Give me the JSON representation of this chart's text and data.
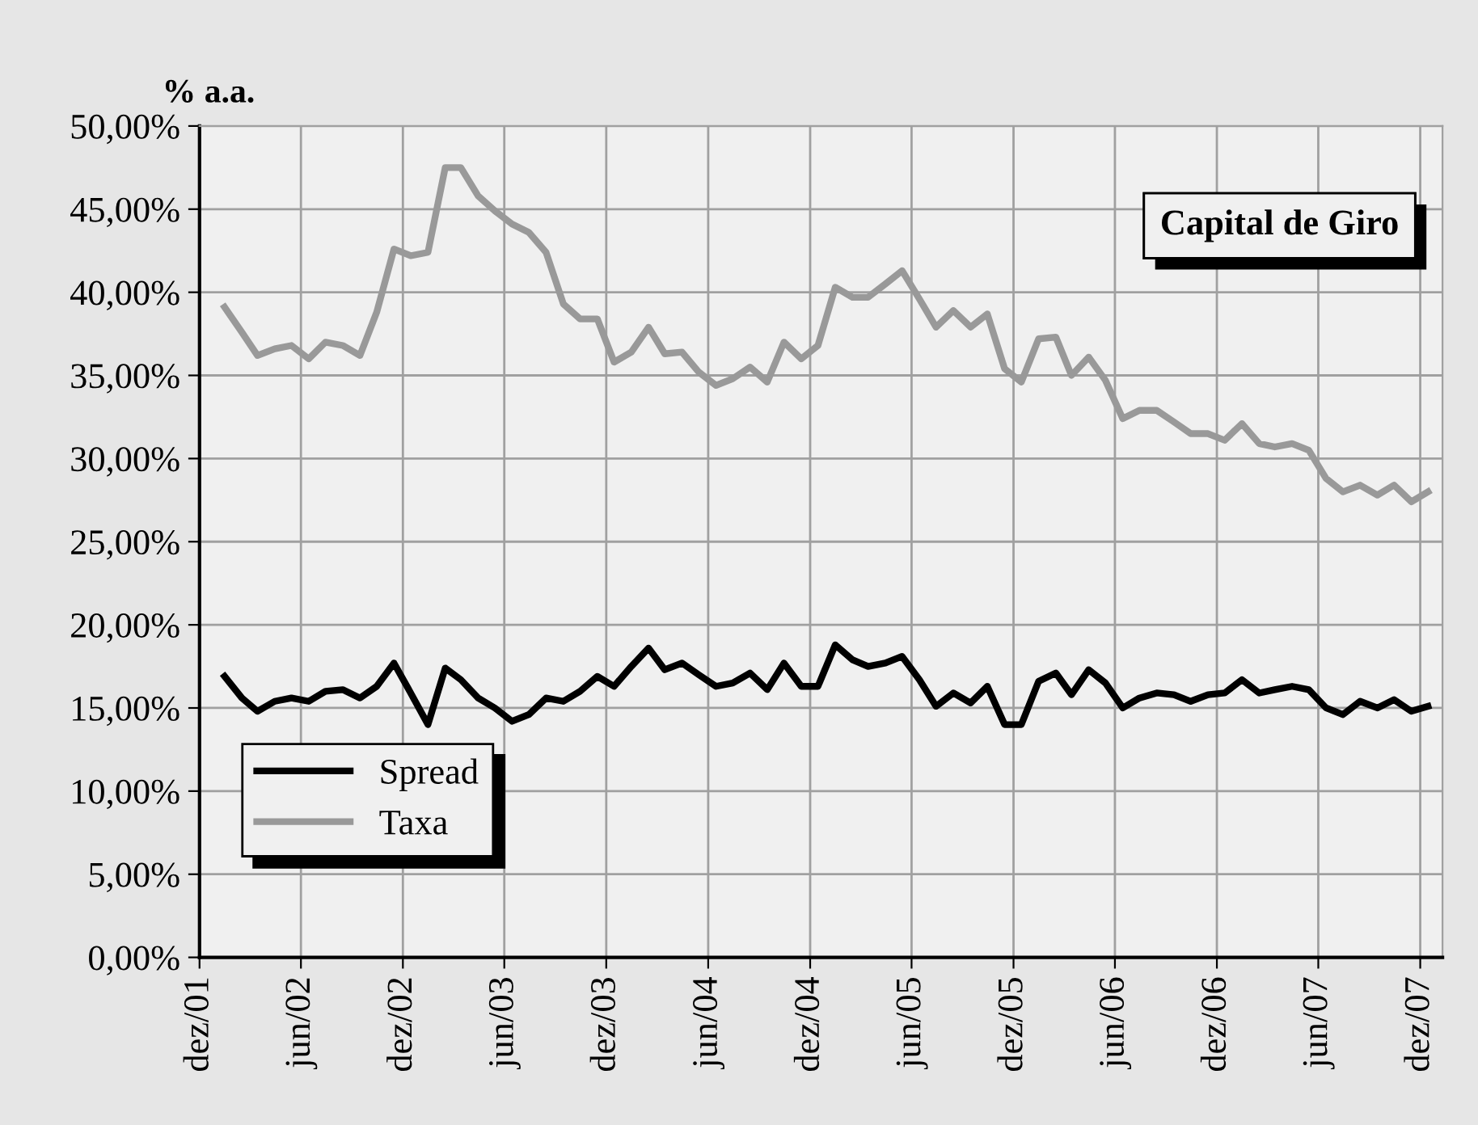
{
  "chart_data": {
    "type": "line",
    "title": "Capital de Giro",
    "ylabel": "% a.a.",
    "x": [
      "2002-01-15",
      "2002-02-15",
      "2002-03-15",
      "2002-04-15",
      "2002-05-15",
      "2002-06-15",
      "2002-07-15",
      "2002-08-15",
      "2002-09-15",
      "2002-10-15",
      "2002-11-15",
      "2002-12-15",
      "2003-01-15",
      "2003-02-15",
      "2003-03-15",
      "2003-04-15",
      "2003-05-15",
      "2003-06-15",
      "2003-07-15",
      "2003-08-15",
      "2003-09-15",
      "2003-10-15",
      "2003-11-15",
      "2003-12-15",
      "2004-01-15",
      "2004-02-15",
      "2004-03-15",
      "2004-04-15",
      "2004-05-15",
      "2004-06-15",
      "2004-07-15",
      "2004-08-15",
      "2004-09-15",
      "2004-10-15",
      "2004-11-15",
      "2004-12-15",
      "2005-01-15",
      "2005-02-15",
      "2005-03-15",
      "2005-04-15",
      "2005-05-15",
      "2005-06-15",
      "2005-07-15",
      "2005-08-15",
      "2005-09-15",
      "2005-10-15",
      "2005-11-15",
      "2005-12-15",
      "2006-01-15",
      "2006-02-15",
      "2006-03-15",
      "2006-04-15",
      "2006-05-15",
      "2006-06-15",
      "2006-07-15",
      "2006-08-15",
      "2006-09-15",
      "2006-10-15",
      "2006-11-15",
      "2006-12-15",
      "2007-01-15",
      "2007-02-15",
      "2007-03-15",
      "2007-04-15",
      "2007-05-15",
      "2007-06-15",
      "2007-07-15",
      "2007-08-15",
      "2007-09-15",
      "2007-10-15",
      "2007-11-15",
      "2007-12-15"
    ],
    "series": [
      {
        "name": "Spread",
        "color": "#000000",
        "values": [
          16.9,
          15.6,
          14.8,
          15.4,
          15.6,
          15.4,
          16.0,
          16.1,
          15.6,
          16.3,
          17.7,
          15.9,
          14.0,
          17.4,
          16.7,
          15.6,
          15.0,
          14.2,
          14.6,
          15.6,
          15.4,
          16.0,
          16.9,
          16.3,
          17.5,
          18.6,
          17.3,
          17.7,
          17.0,
          16.3,
          16.5,
          17.1,
          16.1,
          17.7,
          16.3,
          16.3,
          18.8,
          17.9,
          17.5,
          17.7,
          18.1,
          16.7,
          15.1,
          15.9,
          15.3,
          16.3,
          14.0,
          14.0,
          16.6,
          17.1,
          15.8,
          17.3,
          16.5,
          15.0,
          15.6,
          15.9,
          15.8,
          15.4,
          15.8,
          15.9,
          16.7,
          15.9,
          16.1,
          16.3,
          16.1,
          15.0,
          14.6,
          15.4,
          15.0,
          15.5,
          14.8,
          15.1
        ]
      },
      {
        "name": "Taxa",
        "color": "#999999",
        "values": [
          39.1,
          37.6,
          36.2,
          36.6,
          36.8,
          36.0,
          37.0,
          36.8,
          36.2,
          38.8,
          42.6,
          42.2,
          42.4,
          47.5,
          47.5,
          45.8,
          44.9,
          44.1,
          43.6,
          42.4,
          39.3,
          38.4,
          38.4,
          35.8,
          36.4,
          37.9,
          36.3,
          36.4,
          35.2,
          34.4,
          34.8,
          35.5,
          34.6,
          37.0,
          36.0,
          36.8,
          40.3,
          39.7,
          39.7,
          40.5,
          41.3,
          39.6,
          37.9,
          38.9,
          37.9,
          38.7,
          35.4,
          34.6,
          37.2,
          37.3,
          35.0,
          36.1,
          34.7,
          32.4,
          32.9,
          32.9,
          32.2,
          31.5,
          31.5,
          31.1,
          32.1,
          30.9,
          30.7,
          30.9,
          30.5,
          28.8,
          28.0,
          28.4,
          27.8,
          28.4,
          27.4,
          28.0
        ]
      }
    ],
    "xlim": [
      "2001-12-01",
      "2008-01-10"
    ],
    "xticks": [
      {
        "value": "2001-12-01",
        "label": "dez/01"
      },
      {
        "value": "2002-06-01",
        "label": "jun/02"
      },
      {
        "value": "2002-12-01",
        "label": "dez/02"
      },
      {
        "value": "2003-06-01",
        "label": "jun/03"
      },
      {
        "value": "2003-12-01",
        "label": "dez/03"
      },
      {
        "value": "2004-06-01",
        "label": "jun/04"
      },
      {
        "value": "2004-12-01",
        "label": "dez/04"
      },
      {
        "value": "2005-06-01",
        "label": "jun/05"
      },
      {
        "value": "2005-12-01",
        "label": "dez/05"
      },
      {
        "value": "2006-06-01",
        "label": "jun/06"
      },
      {
        "value": "2006-12-01",
        "label": "dez/06"
      },
      {
        "value": "2007-06-01",
        "label": "jun/07"
      },
      {
        "value": "2007-12-01",
        "label": "dez/07"
      }
    ],
    "ylim": [
      0,
      50
    ],
    "yticks": [
      {
        "value": 0,
        "label": "0,00%"
      },
      {
        "value": 5,
        "label": "5,00%"
      },
      {
        "value": 10,
        "label": "10,00%"
      },
      {
        "value": 15,
        "label": "15,00%"
      },
      {
        "value": 20,
        "label": "20,00%"
      },
      {
        "value": 25,
        "label": "25,00%"
      },
      {
        "value": 30,
        "label": "30,00%"
      },
      {
        "value": 35,
        "label": "35,00%"
      },
      {
        "value": 40,
        "label": "40,00%"
      },
      {
        "value": 45,
        "label": "45,00%"
      },
      {
        "value": 50,
        "label": "50,00%"
      }
    ],
    "grid": true,
    "legend": "bottom left",
    "marker": "none",
    "line_style": "solid"
  }
}
